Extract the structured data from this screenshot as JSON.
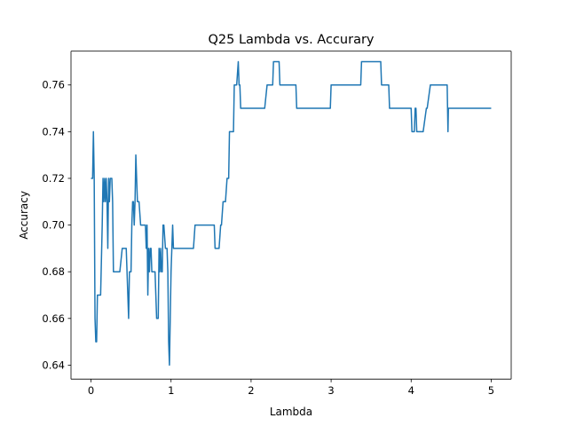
{
  "chart_data": {
    "type": "line",
    "title": "Q25 Lambda vs. Accurary",
    "xlabel": "Lambda",
    "ylabel": "Accuracy",
    "xlim": [
      -0.25,
      5.25
    ],
    "ylim": [
      0.634,
      0.7745
    ],
    "xticks": [
      0,
      1,
      2,
      3,
      4,
      5
    ],
    "xtick_labels": [
      "0",
      "1",
      "2",
      "3",
      "4",
      "5"
    ],
    "yticks": [
      0.64,
      0.66,
      0.68,
      0.7,
      0.72,
      0.74,
      0.76
    ],
    "ytick_labels": [
      "0.64",
      "0.66",
      "0.68",
      "0.70",
      "0.72",
      "0.74",
      "0.76"
    ],
    "grid": false,
    "legend": false,
    "series": [
      {
        "color": "#1f77b4",
        "x": [
          0.0,
          0.02,
          0.03,
          0.04,
          0.05,
          0.06,
          0.07,
          0.08,
          0.1,
          0.12,
          0.14,
          0.15,
          0.16,
          0.17,
          0.18,
          0.19,
          0.2,
          0.21,
          0.22,
          0.23,
          0.24,
          0.25,
          0.26,
          0.27,
          0.28,
          0.3,
          0.33,
          0.36,
          0.39,
          0.42,
          0.44,
          0.46,
          0.47,
          0.48,
          0.5,
          0.51,
          0.52,
          0.53,
          0.54,
          0.55,
          0.56,
          0.57,
          0.58,
          0.6,
          0.62,
          0.64,
          0.66,
          0.68,
          0.69,
          0.7,
          0.71,
          0.72,
          0.73,
          0.74,
          0.75,
          0.76,
          0.78,
          0.8,
          0.82,
          0.84,
          0.85,
          0.86,
          0.87,
          0.88,
          0.89,
          0.9,
          0.91,
          0.93,
          0.95,
          0.96,
          0.97,
          0.98,
          1.0,
          1.02,
          1.03,
          1.04,
          1.05,
          1.06,
          1.07,
          1.08,
          1.1,
          1.15,
          1.2,
          1.25,
          1.28,
          1.3,
          1.4,
          1.48,
          1.54,
          1.55,
          1.6,
          1.62,
          1.63,
          1.65,
          1.66,
          1.68,
          1.7,
          1.72,
          1.73,
          1.75,
          1.76,
          1.78,
          1.79,
          1.8,
          1.82,
          1.84,
          1.85,
          1.86,
          1.87,
          1.9,
          2.0,
          2.1,
          2.17,
          2.2,
          2.25,
          2.27,
          2.28,
          2.35,
          2.36,
          2.4,
          2.5,
          2.56,
          2.57,
          2.7,
          2.85,
          2.99,
          3.0,
          3.2,
          3.37,
          3.38,
          3.5,
          3.62,
          3.63,
          3.72,
          3.73,
          3.9,
          4.0,
          4.01,
          4.04,
          4.05,
          4.06,
          4.07,
          4.08,
          4.1,
          4.15,
          4.19,
          4.2,
          4.24,
          4.25,
          4.3,
          4.4,
          4.45,
          4.46,
          4.465,
          4.47,
          4.5,
          5.0
        ],
        "y": [
          0.72,
          0.72,
          0.74,
          0.72,
          0.66,
          0.65,
          0.65,
          0.67,
          0.67,
          0.67,
          0.7,
          0.72,
          0.71,
          0.72,
          0.71,
          0.72,
          0.71,
          0.69,
          0.72,
          0.71,
          0.72,
          0.72,
          0.72,
          0.71,
          0.68,
          0.68,
          0.68,
          0.68,
          0.69,
          0.69,
          0.69,
          0.67,
          0.66,
          0.68,
          0.68,
          0.7,
          0.71,
          0.71,
          0.7,
          0.71,
          0.73,
          0.72,
          0.71,
          0.71,
          0.7,
          0.7,
          0.7,
          0.7,
          0.69,
          0.7,
          0.67,
          0.69,
          0.68,
          0.69,
          0.69,
          0.68,
          0.68,
          0.68,
          0.66,
          0.66,
          0.69,
          0.68,
          0.69,
          0.68,
          0.68,
          0.7,
          0.7,
          0.69,
          0.69,
          0.68,
          0.65,
          0.64,
          0.68,
          0.7,
          0.69,
          0.69,
          0.69,
          0.69,
          0.69,
          0.69,
          0.69,
          0.69,
          0.69,
          0.69,
          0.69,
          0.7,
          0.7,
          0.7,
          0.7,
          0.69,
          0.69,
          0.7,
          0.7,
          0.71,
          0.71,
          0.71,
          0.72,
          0.72,
          0.74,
          0.74,
          0.74,
          0.74,
          0.76,
          0.76,
          0.76,
          0.77,
          0.76,
          0.76,
          0.75,
          0.75,
          0.75,
          0.75,
          0.75,
          0.76,
          0.76,
          0.76,
          0.77,
          0.77,
          0.76,
          0.76,
          0.76,
          0.76,
          0.75,
          0.75,
          0.75,
          0.75,
          0.76,
          0.76,
          0.76,
          0.77,
          0.77,
          0.77,
          0.76,
          0.76,
          0.75,
          0.75,
          0.75,
          0.74,
          0.74,
          0.75,
          0.75,
          0.74,
          0.74,
          0.74,
          0.74,
          0.75,
          0.75,
          0.76,
          0.76,
          0.76,
          0.76,
          0.76,
          0.74,
          0.75,
          0.75,
          0.75,
          0.75
        ]
      }
    ]
  }
}
